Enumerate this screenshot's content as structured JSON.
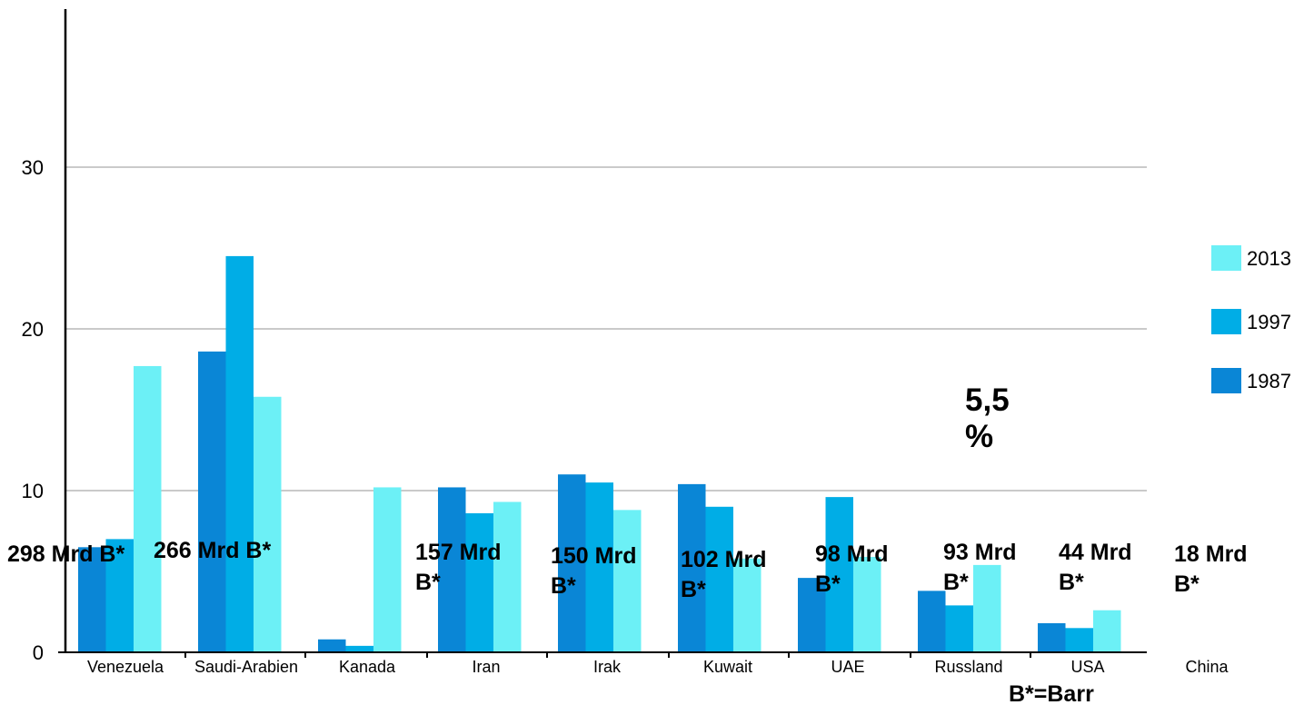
{
  "chart_data": {
    "type": "bar",
    "categories": [
      "Venezuela",
      "Saudi-Arabien",
      "Kanada",
      "Iran",
      "Irak",
      "Kuwait",
      "UAE",
      "Russland",
      "USA",
      "China"
    ],
    "series": [
      {
        "name": "1987",
        "color": "#0a86d6",
        "values": [
          6.5,
          18.6,
          0.8,
          10.2,
          11.0,
          10.4,
          4.6,
          3.8,
          1.8,
          null
        ]
      },
      {
        "name": "1997",
        "color": "#00ade6",
        "values": [
          7.0,
          24.5,
          0.4,
          8.6,
          10.5,
          9.0,
          9.6,
          2.9,
          1.5,
          null
        ]
      },
      {
        "name": "2013",
        "color": "#6cf0f6",
        "values": [
          17.7,
          15.8,
          10.2,
          9.3,
          8.8,
          5.8,
          5.9,
          5.4,
          2.6,
          null
        ]
      }
    ],
    "ylim": [
      0,
      40
    ],
    "yticks": [
      "0",
      "10",
      "20",
      "30"
    ],
    "grid": true,
    "legend_position": "right",
    "legend_order": [
      "2013",
      "1997",
      "1987"
    ],
    "reserve_annotations": [
      {
        "lines": [
          "298 Mrd B*"
        ],
        "category": "Venezuela"
      },
      {
        "lines": [
          "266 Mrd B*"
        ],
        "category": "Saudi-Arabien"
      },
      {
        "lines": [
          "157 Mrd",
          "B*"
        ],
        "category": "Iran"
      },
      {
        "lines": [
          "150 Mrd",
          "B*"
        ],
        "category": "Irak"
      },
      {
        "lines": [
          "102 Mrd",
          "B*"
        ],
        "category": "Kuwait"
      },
      {
        "lines": [
          "98 Mrd",
          "B*"
        ],
        "category": "UAE"
      },
      {
        "lines": [
          "93 Mrd",
          "B*"
        ],
        "category": "Russland"
      },
      {
        "lines": [
          "44 Mrd",
          "B*"
        ],
        "category": "USA"
      },
      {
        "lines": [
          "18 Mrd",
          "B*"
        ],
        "category": "China"
      }
    ],
    "percent_annotation": [
      "5,5",
      "%"
    ],
    "footnote": "B*=Barr"
  }
}
